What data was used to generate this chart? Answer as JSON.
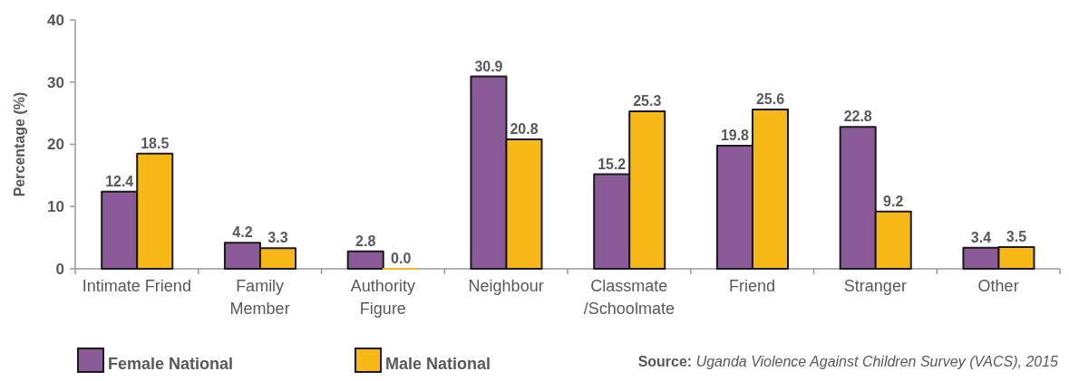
{
  "chart_data": {
    "type": "bar",
    "ylabel": "Percentage (%)",
    "categories": [
      "Intimate Friend",
      "Family\nMember",
      "Authority\nFigure",
      "Neighbour",
      "Classmate\n/Schoolmate",
      "Friend",
      "Stranger",
      "Other"
    ],
    "series": [
      {
        "name": "Female National",
        "color": "#8a5b98",
        "values": [
          12.4,
          4.2,
          2.8,
          30.9,
          15.2,
          19.8,
          22.8,
          3.4
        ],
        "value_labels": [
          "12.4",
          "4.2",
          "2.8",
          "30.9",
          "15.2",
          "19.8",
          "22.8",
          "3.4"
        ]
      },
      {
        "name": "Male National",
        "color": "#f8b818",
        "values": [
          18.5,
          3.3,
          0.0,
          20.8,
          25.3,
          25.6,
          9.2,
          3.5
        ],
        "value_labels": [
          "18.5",
          "3.3",
          "0.0",
          "20.8",
          "25.3",
          "25.6",
          "9.2",
          "3.5"
        ]
      }
    ],
    "ylim": [
      0,
      40
    ],
    "yticks": [
      0,
      10,
      20,
      30,
      40
    ],
    "legend": "bottom",
    "annotations": [
      "Source: Uganda Violence Against Children Survey (VACS), 2015"
    ]
  }
}
